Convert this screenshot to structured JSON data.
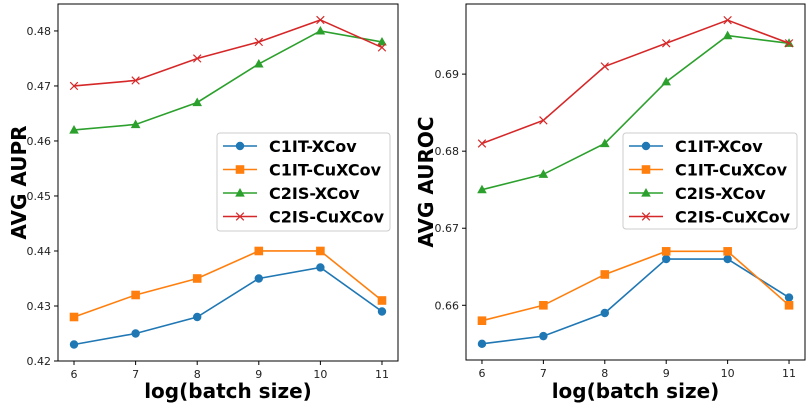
{
  "chart_data": [
    {
      "type": "line",
      "xlabel": "log(batch size)",
      "ylabel": "AVG AUPR",
      "x": [
        6,
        7,
        8,
        9,
        10,
        11
      ],
      "xticks": [
        "6",
        "7",
        "8",
        "9",
        "10",
        "11"
      ],
      "yticks": [
        "0.42",
        "0.43",
        "0.44",
        "0.45",
        "0.46",
        "0.47",
        "0.48"
      ],
      "ylim": [
        0.42,
        0.4849
      ],
      "xlim": [
        5.74,
        11.26
      ],
      "grid": false,
      "legend_position": "center-right",
      "series": [
        {
          "name": "C1IT-XCov",
          "color": "#1f77b4",
          "marker": "circle",
          "values": [
            0.423,
            0.425,
            0.428,
            0.435,
            0.437,
            0.429
          ]
        },
        {
          "name": "C1IT-CuXCov",
          "color": "#ff7f0e",
          "marker": "square",
          "values": [
            0.428,
            0.432,
            0.435,
            0.44,
            0.44,
            0.431
          ]
        },
        {
          "name": "C2IS-XCov",
          "color": "#2ca02c",
          "marker": "triangle",
          "values": [
            0.462,
            0.463,
            0.467,
            0.474,
            0.48,
            0.478
          ]
        },
        {
          "name": "C2IS-CuXCov",
          "color": "#d62728",
          "marker": "x",
          "values": [
            0.47,
            0.471,
            0.475,
            0.478,
            0.482,
            0.477
          ]
        }
      ]
    },
    {
      "type": "line",
      "xlabel": "log(batch size)",
      "ylabel": "AVG AUROC",
      "x": [
        6,
        7,
        8,
        9,
        10,
        11
      ],
      "xticks": [
        "6",
        "7",
        "8",
        "9",
        "10",
        "11"
      ],
      "yticks": [
        "0.66",
        "0.67",
        "0.68",
        "0.69"
      ],
      "ylim": [
        0.6529,
        0.6991
      ],
      "xlim": [
        5.74,
        11.26
      ],
      "grid": false,
      "legend_position": "center-right",
      "series": [
        {
          "name": "C1IT-XCov",
          "color": "#1f77b4",
          "marker": "circle",
          "values": [
            0.655,
            0.656,
            0.659,
            0.666,
            0.666,
            0.661
          ]
        },
        {
          "name": "C1IT-CuXCov",
          "color": "#ff7f0e",
          "marker": "square",
          "values": [
            0.658,
            0.66,
            0.664,
            0.667,
            0.667,
            0.66
          ]
        },
        {
          "name": "C2IS-XCov",
          "color": "#2ca02c",
          "marker": "triangle",
          "values": [
            0.675,
            0.677,
            0.681,
            0.689,
            0.695,
            0.694
          ]
        },
        {
          "name": "C2IS-CuXCov",
          "color": "#d62728",
          "marker": "x",
          "values": [
            0.681,
            0.684,
            0.691,
            0.694,
            0.697,
            0.694
          ]
        }
      ]
    }
  ]
}
